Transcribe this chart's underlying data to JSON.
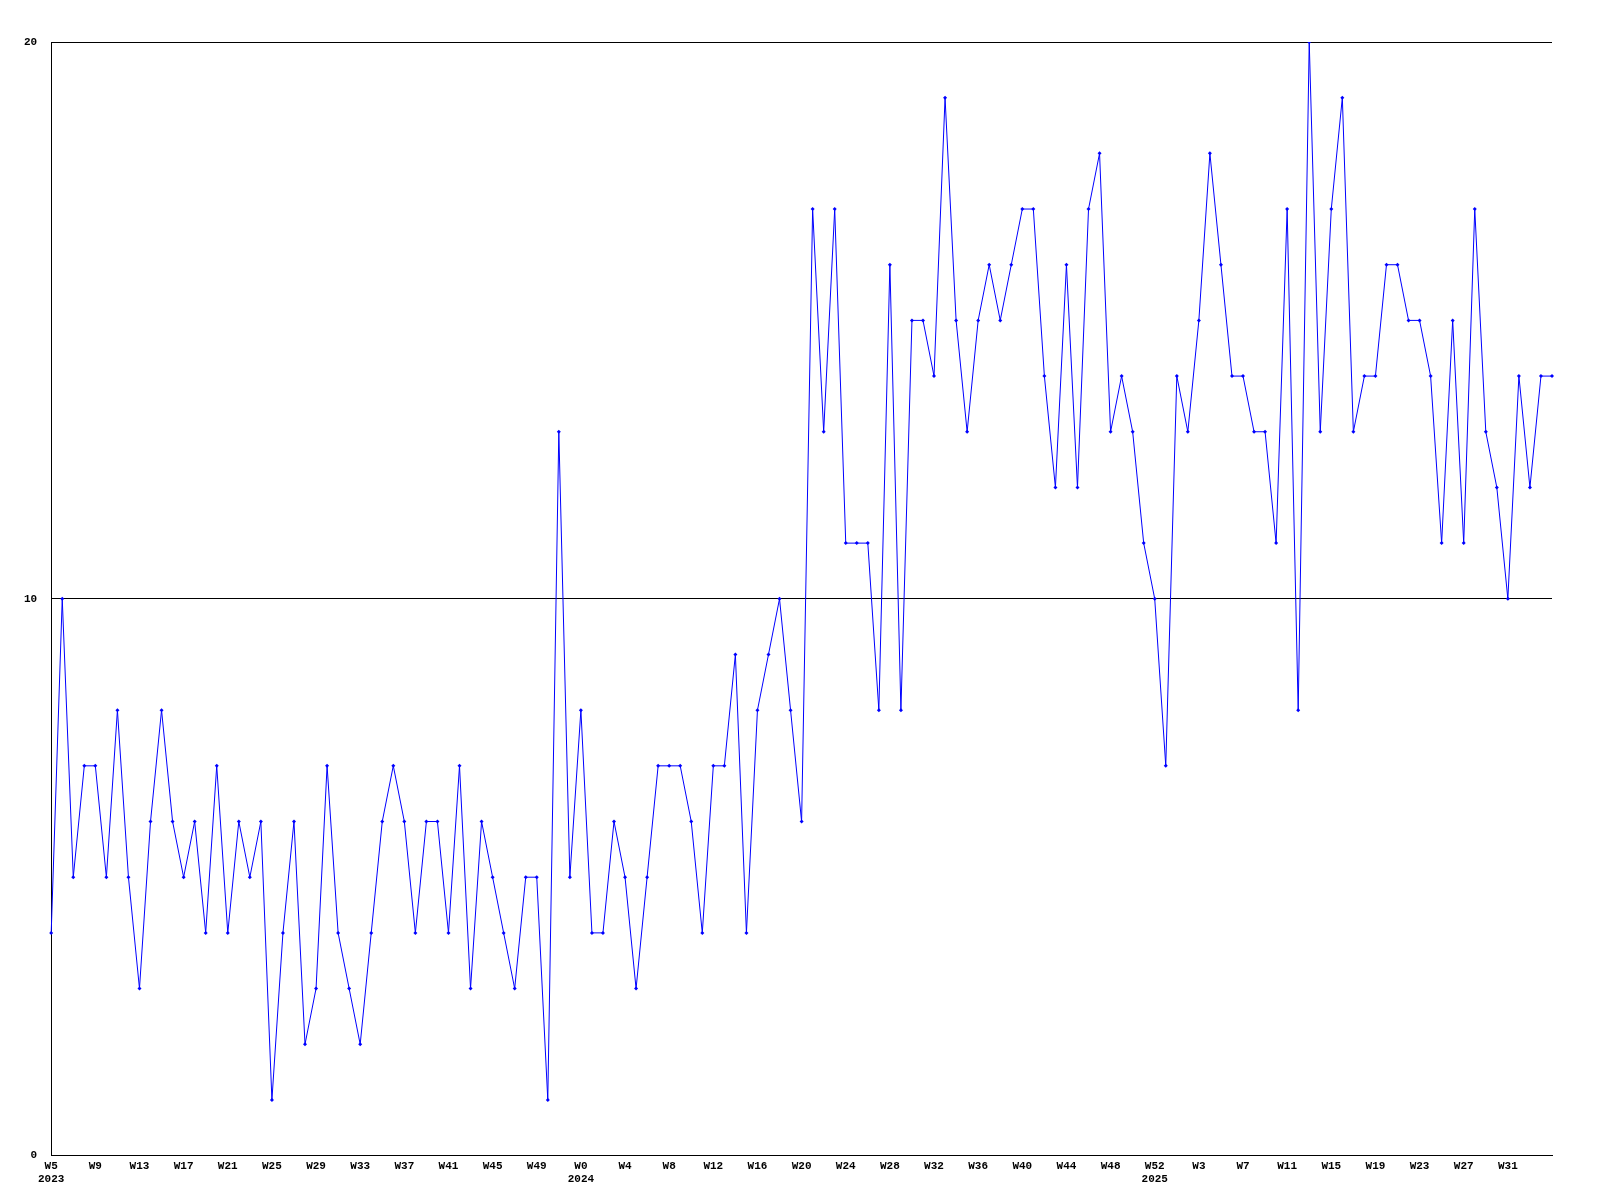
{
  "chart_data": {
    "type": "line",
    "categories": [
      "W5\n2023",
      null,
      null,
      null,
      "W9",
      null,
      null,
      null,
      "W13",
      null,
      null,
      null,
      "W17",
      null,
      null,
      null,
      "W21",
      null,
      null,
      null,
      "W25",
      null,
      null,
      null,
      "W29",
      null,
      null,
      null,
      "W33",
      null,
      null,
      null,
      "W37",
      null,
      null,
      null,
      "W41",
      null,
      null,
      null,
      "W45",
      null,
      null,
      null,
      "W49",
      null,
      null,
      null,
      "W0\n2024",
      null,
      null,
      null,
      "W4",
      null,
      null,
      null,
      "W8",
      null,
      null,
      null,
      "W12",
      null,
      null,
      null,
      "W16",
      null,
      null,
      null,
      "W20",
      null,
      null,
      null,
      "W24",
      null,
      null,
      null,
      "W28",
      null,
      null,
      null,
      "W32",
      null,
      null,
      null,
      "W36",
      null,
      null,
      null,
      "W40",
      null,
      null,
      null,
      "W44",
      null,
      null,
      null,
      "W48",
      null,
      null,
      null,
      "W52\n2025",
      null,
      null,
      null,
      "W3",
      null,
      null,
      null,
      "W7",
      null,
      null,
      null,
      "W11",
      null,
      null,
      null,
      "W15",
      null,
      null,
      null,
      "W19",
      null,
      null,
      null,
      "W23",
      null,
      null,
      null,
      "W27",
      null,
      null,
      null,
      "W31",
      null,
      null,
      null,
      null
    ],
    "series": [
      {
        "color": "#0000ff",
        "values": [
          4,
          10,
          5,
          7,
          7,
          5,
          8,
          5,
          3,
          6,
          8,
          6,
          5,
          6,
          4,
          7,
          4,
          6,
          5,
          6,
          1,
          4,
          6,
          2,
          3,
          7,
          4,
          3,
          2,
          4,
          6,
          7,
          6,
          4,
          6,
          6,
          4,
          7,
          3,
          6,
          5,
          4,
          3,
          5,
          5,
          1,
          13,
          5,
          8,
          4,
          4,
          6,
          5,
          3,
          5,
          7,
          7,
          7,
          6,
          4,
          7,
          7,
          9,
          4,
          8,
          9,
          10,
          8,
          6,
          17,
          13,
          17,
          11,
          11,
          11,
          8,
          16,
          8,
          15,
          15,
          14,
          19,
          15,
          13,
          15,
          16,
          15,
          16,
          17,
          17,
          14,
          12,
          16,
          12,
          17,
          18,
          13,
          14,
          13,
          11,
          10,
          7,
          14,
          13,
          15,
          18,
          16,
          14,
          14,
          13,
          13,
          11,
          17,
          8,
          20,
          13,
          17,
          19,
          13,
          14,
          14,
          16,
          16,
          15,
          15,
          14,
          11,
          15,
          11,
          17,
          13,
          12,
          10,
          14,
          12,
          14,
          14
        ]
      }
    ],
    "ylim": [
      0,
      20
    ],
    "yticks": [
      0,
      10,
      20
    ],
    "grid": "y",
    "marker": "diamond",
    "line_style": "solid",
    "legend": false
  }
}
